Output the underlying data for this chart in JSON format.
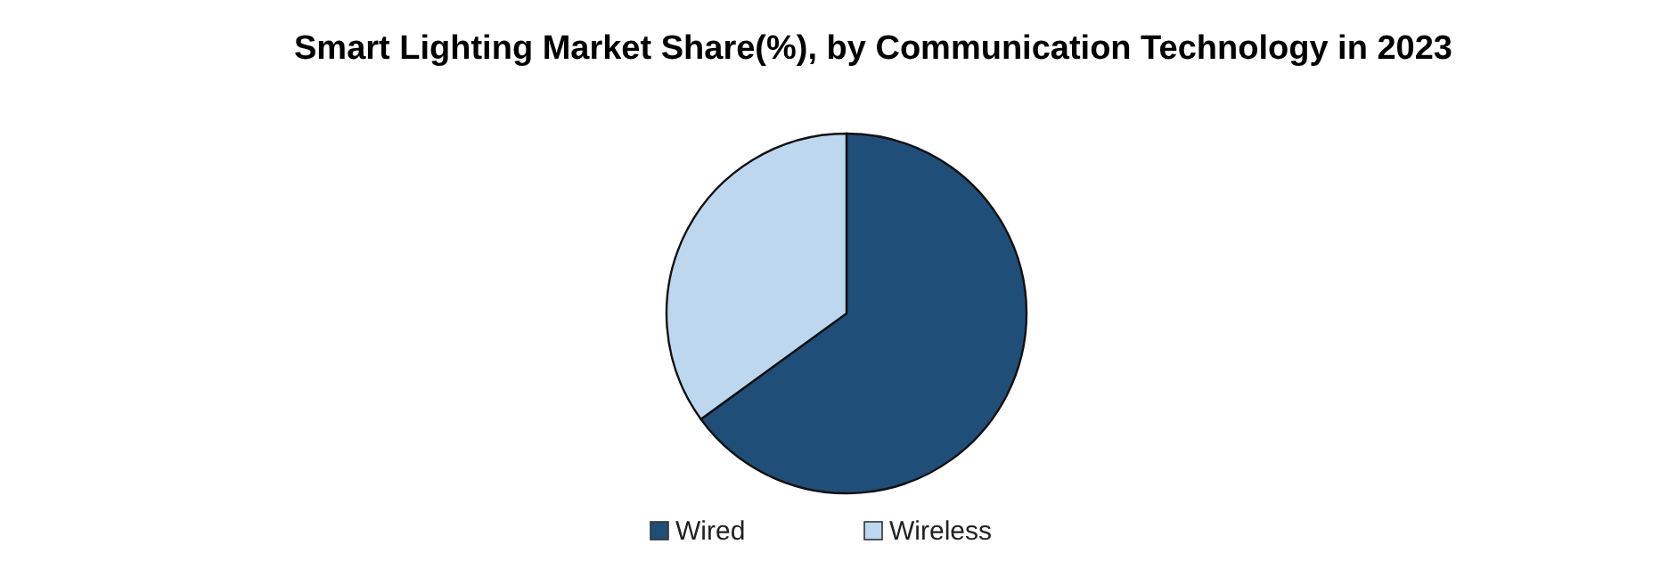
{
  "chart_data": {
    "type": "pie",
    "title": "Smart Lighting Market Share(%), by Communication Technology in 2023",
    "categories": [
      "Wired",
      "Wireless"
    ],
    "values": [
      65,
      35
    ],
    "colors": [
      "#1f4e79",
      "#bdd7ee"
    ],
    "legend": "bottom"
  }
}
